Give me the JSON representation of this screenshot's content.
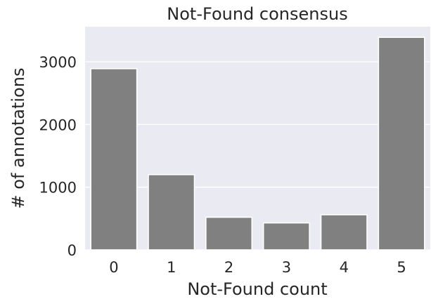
{
  "chart_data": {
    "type": "bar",
    "title": "Not-Found consensus",
    "xlabel": "Not-Found count",
    "ylabel": "# of annotations",
    "categories": [
      "0",
      "1",
      "2",
      "3",
      "4",
      "5"
    ],
    "values": [
      2890,
      1200,
      520,
      430,
      560,
      3390
    ],
    "yticks": [
      0,
      1000,
      2000,
      3000
    ],
    "ylim": [
      0,
      3560
    ],
    "grid": true,
    "legend": "none",
    "colors": {
      "bar": "#808080",
      "plot_background": "#eaeaf2",
      "gridline": "#ffffff",
      "text": "#262626"
    }
  }
}
